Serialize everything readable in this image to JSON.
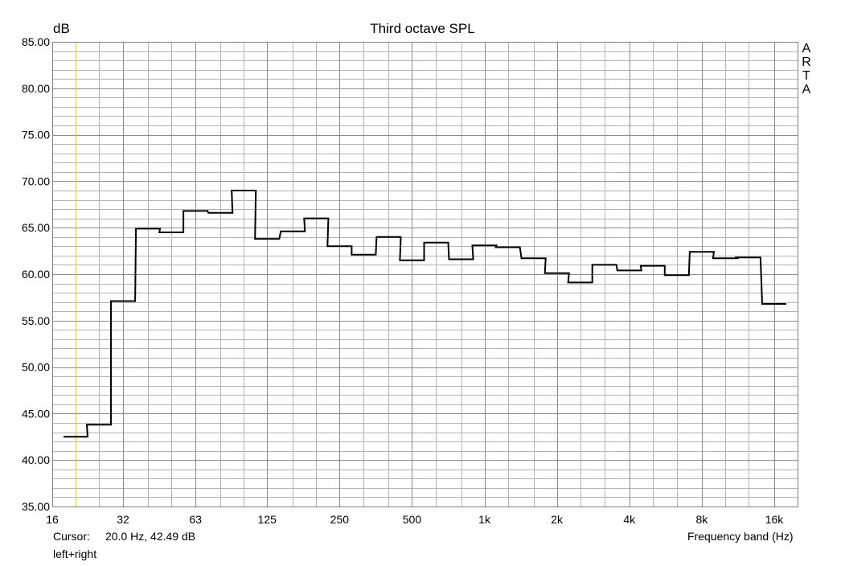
{
  "chart_data": {
    "type": "line",
    "style": "step",
    "title": "Third octave SPL",
    "ylabel": "dB",
    "xlabel": "Frequency band (Hz)",
    "ylim": [
      35,
      85
    ],
    "xlim": [
      16,
      20000
    ],
    "x_scale": "log",
    "grid": true,
    "y_ticks": [
      "35.00",
      "40.00",
      "45.00",
      "50.00",
      "55.00",
      "60.00",
      "65.00",
      "70.00",
      "75.00",
      "80.00",
      "85.00"
    ],
    "x_ticks": [
      {
        "value": 16,
        "label": "16"
      },
      {
        "value": 31.5,
        "label": "32"
      },
      {
        "value": 63,
        "label": "63"
      },
      {
        "value": 125,
        "label": "125"
      },
      {
        "value": 250,
        "label": "250"
      },
      {
        "value": 500,
        "label": "500"
      },
      {
        "value": 1000,
        "label": "1k"
      },
      {
        "value": 2000,
        "label": "2k"
      },
      {
        "value": 4000,
        "label": "4k"
      },
      {
        "value": 8000,
        "label": "8k"
      },
      {
        "value": 16000,
        "label": "16k"
      }
    ],
    "bands": [
      20,
      25,
      31.5,
      40,
      50,
      63,
      80,
      100,
      125,
      160,
      200,
      250,
      315,
      400,
      500,
      630,
      800,
      1000,
      1250,
      1600,
      2000,
      2500,
      3150,
      4000,
      5000,
      6300,
      8000,
      10000,
      12500,
      16000
    ],
    "values": [
      42.5,
      43.8,
      57.1,
      64.9,
      64.5,
      66.8,
      66.6,
      69.0,
      63.8,
      64.6,
      66.0,
      63.0,
      62.1,
      64.0,
      61.5,
      63.4,
      61.6,
      63.1,
      62.9,
      61.7,
      60.1,
      59.1,
      61.0,
      60.4,
      60.9,
      59.9,
      62.4,
      61.7,
      61.8,
      56.8
    ],
    "cursor_x": 20,
    "line_color": "#000000",
    "cursor_color": "#e8d800",
    "grid_color": "#b4b4b4"
  },
  "cursor": {
    "label": "Cursor:",
    "value": "20.0 Hz, 42.49 dB"
  },
  "mode": "left+right",
  "brand_letters": [
    "A",
    "R",
    "T",
    "A"
  ]
}
